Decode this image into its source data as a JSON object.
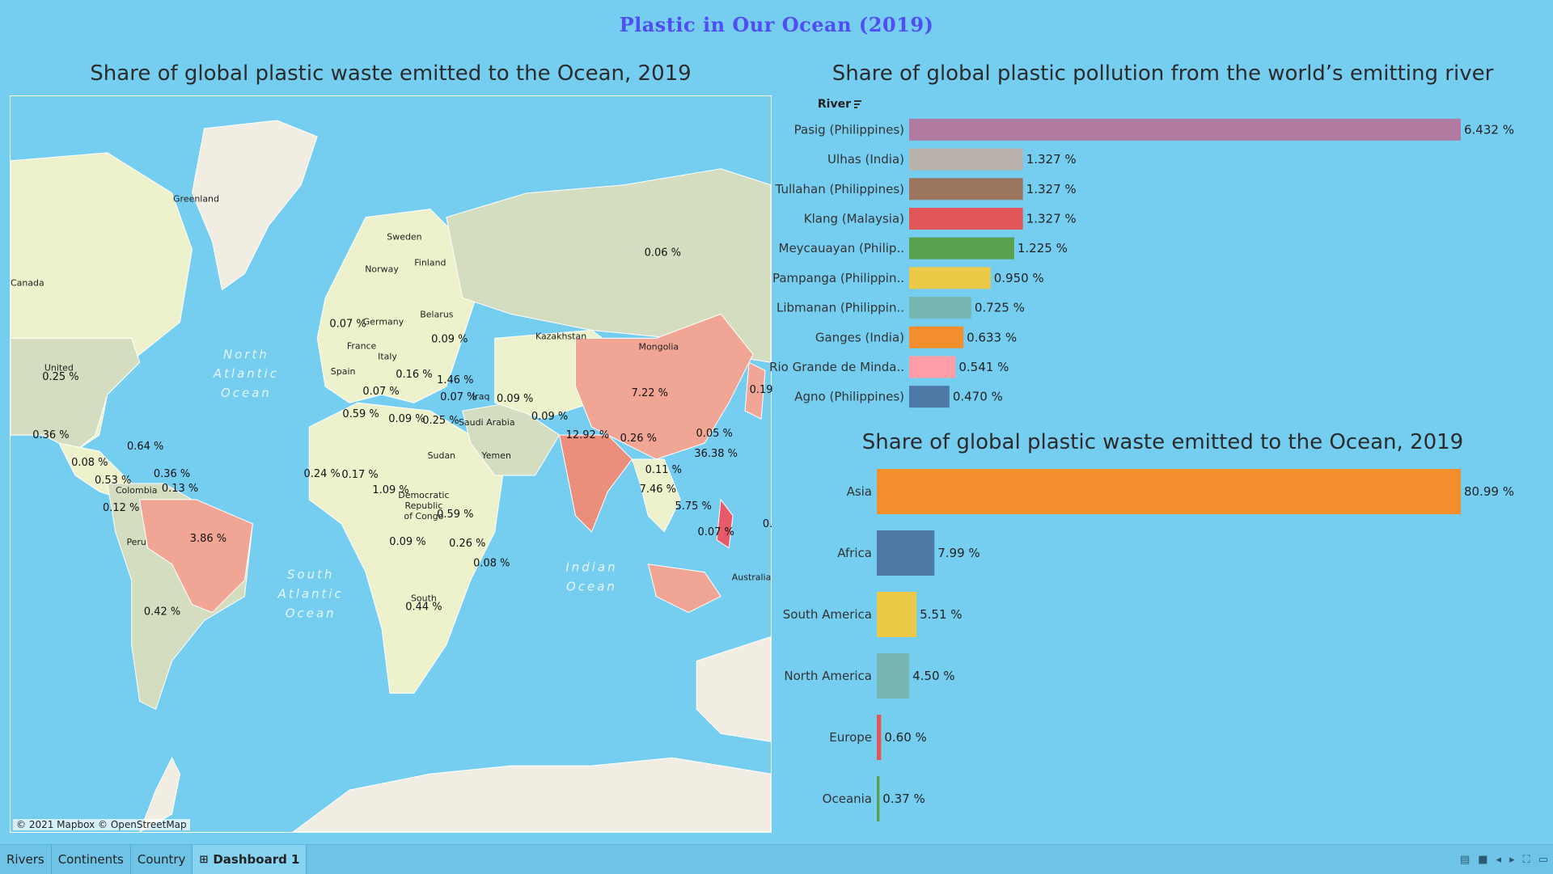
{
  "dashboard_title": "Plastic in Our Ocean (2019)",
  "map": {
    "title": "Share of global plastic waste emitted to the Ocean, 2019",
    "attribution": "© 2021 Mapbox © OpenStreetMap",
    "country_labels": [
      "Greenland",
      "Canada",
      "Sweden",
      "Norway",
      "Finland",
      "Germany",
      "Belarus",
      "France",
      "Italy",
      "Spain",
      "Kazakhstan",
      "Mongolia",
      "United",
      "Iraq",
      "Saudi Arabia",
      "Yemen",
      "Sudan",
      "Democratic",
      "Republic",
      "of Congo",
      "Colombia",
      "Peru",
      "South",
      "Australia"
    ],
    "ocean_labels": [
      "North",
      "Atlantic",
      "Ocean",
      "South",
      "Atlantic",
      "Ocean",
      "Indian",
      "Ocean"
    ],
    "pct_labels": [
      "0.06 %",
      "0.07 %",
      "0.09 %",
      "0.25 %",
      "0.16 %",
      "1.46 %",
      "0.07 %",
      "0.07 %",
      "0.09 %",
      "7.22 %",
      "0.19",
      "0.36 %",
      "0.64 %",
      "0.59 %",
      "0.09 %",
      "0.25 %",
      "0.09 %",
      "12.92 %",
      "0.26 %",
      "0.05 %",
      "0.08 %",
      "0.53 %",
      "0.36 %",
      "0.13 %",
      "36.38 %",
      "0.11 %",
      "0.24 %",
      "0.17 %",
      "0.12 %",
      "1.09 %",
      "7.46 %",
      "5.75 %",
      "3.86 %",
      "0.59 %",
      "0.07 %",
      "0.09 %",
      "0.26 %",
      "0.08 %",
      "0.42 %",
      "0.44 %",
      "0."
    ]
  },
  "river_chart": {
    "title": "Share of global plastic pollution from the world’s emitting river",
    "header": "River",
    "sort_icon": "sort-icon",
    "chart_data": {
      "type": "bar",
      "orientation": "horizontal",
      "categories": [
        "Pasig (Philippines)",
        "Ulhas (India)",
        "Tullahan (Philippines)",
        "Klang (Malaysia)",
        "Meycauayan (Philip..",
        "Pampanga (Philippin..",
        "Libmanan (Philippin..",
        "Ganges (India)",
        "Rio Grande de Minda..",
        "Agno (Philippines)"
      ],
      "values": [
        6.432,
        1.327,
        1.327,
        1.327,
        1.225,
        0.95,
        0.725,
        0.633,
        0.541,
        0.47
      ],
      "value_labels": [
        "6.432 %",
        "1.327 %",
        "1.327 %",
        "1.327 %",
        "1.225 %",
        "0.950 %",
        "0.725 %",
        "0.633 %",
        "0.541 %",
        "0.470 %"
      ],
      "colors": [
        "#b07aa1",
        "#bab0ac",
        "#9c755f",
        "#e15759",
        "#59a14f",
        "#edc948",
        "#76b7b2",
        "#f28e2b",
        "#ff9da7",
        "#4e79a7"
      ],
      "xlim": [
        0,
        6.432
      ]
    }
  },
  "continent_chart": {
    "title": "Share of global plastic waste emitted to the Ocean, 2019",
    "chart_data": {
      "type": "bar",
      "orientation": "horizontal",
      "categories": [
        "Asia",
        "Africa",
        "South America",
        "North America",
        "Europe",
        "Oceania"
      ],
      "values": [
        80.99,
        7.99,
        5.51,
        4.5,
        0.6,
        0.37
      ],
      "value_labels": [
        "80.99 %",
        "7.99 %",
        "5.51 %",
        "4.50 %",
        "0.60 %",
        "0.37 %"
      ],
      "colors": [
        "#f28e2b",
        "#4e79a7",
        "#edc948",
        "#76b7b2",
        "#e15759",
        "#59a14f"
      ],
      "xlim": [
        0,
        80.99
      ]
    }
  },
  "tabs": [
    {
      "label": "Rivers"
    },
    {
      "label": "Continents"
    },
    {
      "label": "Country"
    },
    {
      "label": "Dashboard 1",
      "icon": "grid-icon",
      "active": true
    }
  ],
  "toolbar_icons": [
    "list-view-icon",
    "grid-view-icon",
    "prev-icon",
    "next-icon",
    "fullscreen-icon",
    "present-icon"
  ]
}
